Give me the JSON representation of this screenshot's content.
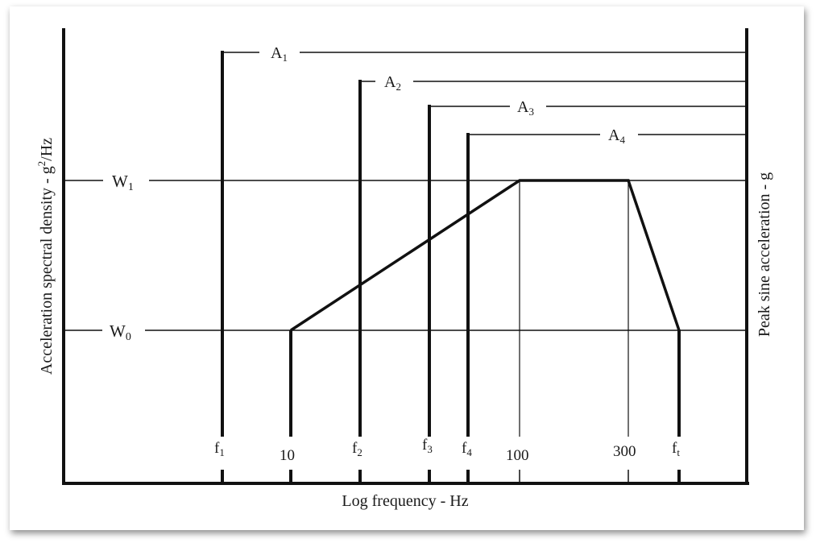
{
  "diagram": {
    "y_axis_left_label": "Acceleration spectral density - g",
    "y_axis_left_unit_sup": "2",
    "y_axis_left_unit_tail": "/Hz",
    "y_axis_right_label": "Peak sine acceleration - g",
    "x_axis_label": "Log frequency - Hz",
    "level_labels": {
      "w1": {
        "base": "W",
        "sub": "1"
      },
      "w0": {
        "base": "W",
        "sub": "0"
      }
    },
    "amplitude_labels": [
      {
        "base": "A",
        "sub": "1"
      },
      {
        "base": "A",
        "sub": "2"
      },
      {
        "base": "A",
        "sub": "3"
      },
      {
        "base": "A",
        "sub": "4"
      }
    ],
    "freq_labels": {
      "f1": {
        "base": "f",
        "sub": "1"
      },
      "ten": "10",
      "f2": {
        "base": "f",
        "sub": "2"
      },
      "f3": {
        "base": "f",
        "sub": "3"
      },
      "f4": {
        "base": "f",
        "sub": "4"
      },
      "hundred": "100",
      "three_hundred": "300",
      "ft": {
        "base": "f",
        "sub": "t"
      }
    }
  }
}
